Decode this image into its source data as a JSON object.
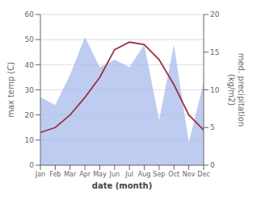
{
  "chart_data": {
    "type": "line",
    "xlabel": "date (month)",
    "ylabel": "max temp (C)",
    "y2label": "med. precipitation\n(kg/m2)",
    "categories": [
      "Jan",
      "Feb",
      "Mar",
      "Apr",
      "May",
      "Jun",
      "Jul",
      "Aug",
      "Sep",
      "Oct",
      "Nov",
      "Dec"
    ],
    "series": [
      {
        "type": "area",
        "axis": "y2",
        "color": "#aabbee",
        "values": [
          9,
          8,
          12,
          17,
          13,
          14,
          13,
          16,
          6,
          16,
          3,
          11
        ]
      },
      {
        "type": "line",
        "color": "#993344",
        "values": [
          13,
          15,
          20,
          27,
          35,
          46,
          49,
          48,
          42,
          32,
          20,
          14
        ]
      }
    ],
    "ylim": [
      0,
      60
    ],
    "yticks": [
      0,
      10,
      20,
      30,
      40,
      50,
      60
    ],
    "y2lim": [
      0,
      20
    ],
    "y2ticks": [
      0,
      5,
      10,
      15,
      20
    ],
    "grid": true
  }
}
